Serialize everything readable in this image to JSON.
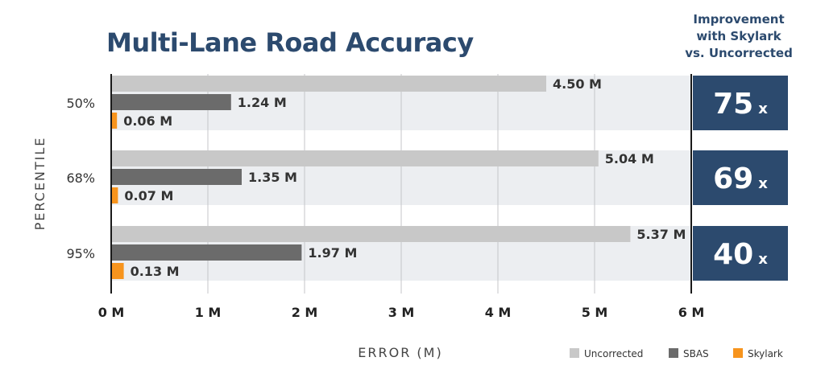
{
  "chart_data": {
    "type": "bar",
    "orientation": "horizontal",
    "title": "Multi-Lane Road Accuracy",
    "xlabel": "ERROR (M)",
    "ylabel": "PERCENTILE",
    "xlim": [
      0,
      6
    ],
    "x_ticks": [
      "0 M",
      "1 M",
      "2 M",
      "3 M",
      "4 M",
      "5 M",
      "6 M"
    ],
    "grid": "vertical",
    "legend_position": "bottom-right",
    "categories": [
      "50%",
      "68%",
      "95%"
    ],
    "series": [
      {
        "name": "Uncorrected",
        "color": "#c8c8c8",
        "values": [
          4.5,
          5.04,
          5.37
        ],
        "labels": [
          "4.50 M",
          "5.04 M",
          "5.37 M"
        ]
      },
      {
        "name": "SBAS",
        "color": "#6b6b6b",
        "values": [
          1.24,
          1.35,
          1.97
        ],
        "labels": [
          "1.24 M",
          "1.35 M",
          "1.97 M"
        ]
      },
      {
        "name": "Skylark",
        "color": "#f7941d",
        "values": [
          0.06,
          0.07,
          0.13
        ],
        "labels": [
          "0.06 M",
          "0.07 M",
          "0.13 M"
        ]
      }
    ],
    "improvement": {
      "title_lines": [
        "Improvement",
        "with Skylark",
        "vs. Uncorrected"
      ],
      "values": [
        "75",
        "69",
        "40"
      ],
      "suffix": "x",
      "box_color": "#2c4a6e"
    }
  }
}
